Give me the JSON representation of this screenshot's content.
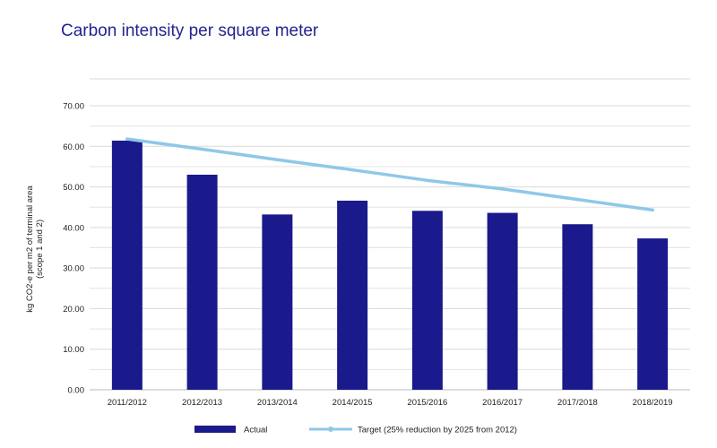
{
  "title": "Carbon intensity per square meter",
  "chart_data": {
    "type": "bar",
    "title": "Carbon intensity per square meter",
    "ylabel_line1": "kg CO2-e per m2 of terminal area",
    "ylabel_line2": "(scope 1 and 2)",
    "xlabel": "",
    "ylim": [
      0,
      70
    ],
    "ytick_values": [
      0,
      10,
      20,
      30,
      40,
      50,
      60,
      70
    ],
    "ytick_labels": [
      "0.00",
      "10.00",
      "20.00",
      "30.00",
      "40.00",
      "50.00",
      "60.00",
      "70.00"
    ],
    "grid": true,
    "legend_position": "bottom",
    "categories": [
      "2011/2012",
      "2012/2013",
      "2013/2014",
      "2014/2015",
      "2015/2016",
      "2016/2017",
      "2017/2018",
      "2018/2019"
    ],
    "series": [
      {
        "name": "Actual",
        "type": "bar",
        "color": "#1a1a8c",
        "values": [
          61.4,
          53.0,
          43.2,
          46.6,
          44.1,
          43.6,
          40.8,
          37.3
        ]
      },
      {
        "name": "Target (25% reduction by 2025 from 2012)",
        "type": "line",
        "color": "#8ec8e8",
        "values": [
          61.8,
          59.3,
          56.7,
          54.2,
          51.6,
          49.5,
          46.9,
          44.3
        ]
      }
    ]
  }
}
